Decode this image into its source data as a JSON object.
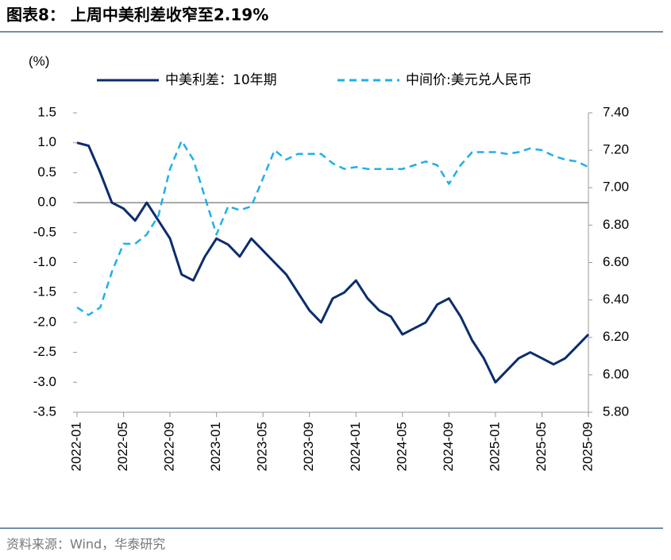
{
  "chart_data": {
    "type": "line",
    "title": "图表8： 上周中美利差收窄至2.19%",
    "y_label": "(%)",
    "source": "资料来源：Wind，华泰研究",
    "x": [
      "2022-01",
      "2022-02",
      "2022-03",
      "2022-04",
      "2022-05",
      "2022-06",
      "2022-07",
      "2022-08",
      "2022-09",
      "2022-10",
      "2022-11",
      "2022-12",
      "2023-01",
      "2023-02",
      "2023-03",
      "2023-04",
      "2023-05",
      "2023-06",
      "2023-07",
      "2023-08",
      "2023-09",
      "2023-10",
      "2023-11",
      "2023-12",
      "2024-01",
      "2024-02",
      "2024-03",
      "2024-04",
      "2024-05",
      "2024-06",
      "2024-07",
      "2024-08",
      "2024-09",
      "2024-10",
      "2024-11",
      "2024-12",
      "2025-01",
      "2025-02",
      "2025-03",
      "2025-04",
      "2025-05",
      "2025-06",
      "2025-07",
      "2025-08",
      "2025-09"
    ],
    "xticks": [
      "2022-01",
      "2022-05",
      "2022-09",
      "2023-01",
      "2023-05",
      "2023-09",
      "2024-01",
      "2024-05",
      "2024-09",
      "2025-01",
      "2025-05",
      "2025-09"
    ],
    "ylim": [
      -3.5,
      1.5
    ],
    "yticks": [
      1.5,
      {
        "value": 1,
        "label": "1.0"
      },
      0.5,
      {
        "value": 0,
        "label": "0.0"
      },
      -0.5,
      {
        "value": -1,
        "label": "-1.0"
      },
      -1.5,
      {
        "value": -2,
        "label": "-2.0"
      },
      -2.5,
      {
        "value": -3,
        "label": "-3.0"
      },
      -3.5
    ],
    "y2lim": [
      5.8,
      7.4
    ],
    "y2ticks": [
      {
        "value": 7.4,
        "label": "7.40"
      },
      {
        "value": 7.2,
        "label": "7.20"
      },
      {
        "value": 7,
        "label": "7.00"
      },
      {
        "value": 6.8,
        "label": "6.80"
      },
      {
        "value": 6.6,
        "label": "6.60"
      },
      {
        "value": 6.4,
        "label": "6.40"
      },
      {
        "value": 6.2,
        "label": "6.20"
      },
      {
        "value": 6,
        "label": "6.00"
      },
      {
        "value": 5.8,
        "label": "5.80"
      }
    ],
    "series": [
      {
        "name": "中美利差：10年期",
        "color": "#0b2d6e",
        "dash": false,
        "values": [
          1.0,
          0.95,
          0.5,
          0.0,
          -0.1,
          -0.3,
          0.0,
          -0.3,
          -0.6,
          -1.2,
          -1.3,
          -0.9,
          -0.6,
          -0.7,
          -0.9,
          -0.6,
          -0.8,
          -1.0,
          -1.2,
          -1.5,
          -1.8,
          -2.0,
          -1.6,
          -1.5,
          -1.3,
          -1.6,
          -1.8,
          -1.9,
          -2.2,
          -2.1,
          -2.0,
          -1.7,
          -1.6,
          -1.9,
          -2.3,
          -2.6,
          -3.0,
          -2.8,
          -2.6,
          -2.5,
          -2.6,
          -2.7,
          -2.6,
          -2.4,
          -2.2
        ]
      },
      {
        "name": "中间价:美元兑人民币",
        "color": "#1fb0e8",
        "dash": true,
        "axis": "y2",
        "values": [
          6.36,
          6.32,
          6.36,
          6.55,
          6.7,
          6.7,
          6.75,
          6.85,
          7.1,
          7.25,
          7.15,
          6.95,
          6.75,
          6.9,
          6.88,
          6.9,
          7.05,
          7.2,
          7.15,
          7.18,
          7.18,
          7.18,
          7.13,
          7.1,
          7.11,
          7.1,
          7.1,
          7.1,
          7.1,
          7.12,
          7.14,
          7.12,
          7.02,
          7.12,
          7.19,
          7.19,
          7.19,
          7.18,
          7.19,
          7.21,
          7.2,
          7.17,
          7.15,
          7.14,
          7.11
        ]
      }
    ]
  }
}
